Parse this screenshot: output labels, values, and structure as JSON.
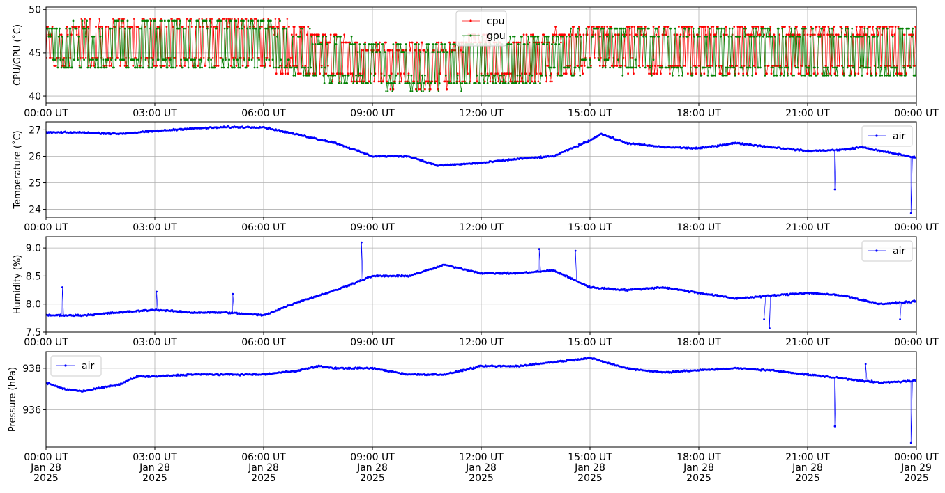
{
  "chart_data": [
    {
      "type": "line",
      "ylabel": "CPU/GPU (˚C)",
      "xlabel": "",
      "x_ticks": [
        "00:00 UT",
        "03:00 UT",
        "06:00 UT",
        "09:00 UT",
        "12:00 UT",
        "15:00 UT",
        "18:00 UT",
        "21:00 UT",
        "00:00 UT"
      ],
      "xlim": [
        "2025-01-28 00:00",
        "2025-01-29 00:00"
      ],
      "ylim": [
        39.2,
        50.3
      ],
      "y_ticks": [
        40,
        45,
        50
      ],
      "grid": true,
      "legend": "top-center",
      "series": [
        {
          "name": "cpu",
          "color": "#ff0000",
          "style": "oscillating",
          "x": [
            0,
            3,
            6,
            7,
            9,
            10.8,
            12,
            13.5,
            15,
            18,
            21,
            24
          ],
          "low": [
            43,
            43,
            43,
            42,
            41,
            40.5,
            41,
            41,
            43,
            42,
            42,
            42
          ],
          "high": [
            48,
            49,
            49,
            48,
            46,
            46,
            47,
            47,
            48,
            48,
            48,
            48
          ]
        },
        {
          "name": "gpu",
          "color": "#008000",
          "style": "oscillating",
          "x": [
            0,
            3,
            6,
            7,
            9,
            10.8,
            12,
            13.5,
            15,
            18,
            21,
            24
          ],
          "low": [
            43,
            43,
            43,
            42,
            41,
            40.5,
            41,
            41,
            43,
            42,
            42,
            42
          ],
          "high": [
            48,
            49,
            49,
            48,
            46,
            46,
            47,
            47,
            48,
            48,
            48,
            48
          ]
        }
      ]
    },
    {
      "type": "line",
      "ylabel": "Temperature (˚C)",
      "xlabel": "",
      "x_ticks": [
        "00:00 UT",
        "03:00 UT",
        "06:00 UT",
        "09:00 UT",
        "12:00 UT",
        "15:00 UT",
        "18:00 UT",
        "21:00 UT",
        "00:00 UT"
      ],
      "ylim": [
        23.7,
        27.3
      ],
      "y_ticks": [
        24,
        25,
        26,
        27
      ],
      "grid": true,
      "legend": "top-right",
      "series": [
        {
          "name": "air",
          "color": "#0000ff",
          "x": [
            0,
            1,
            2,
            3,
            4,
            5,
            6,
            7,
            8,
            9,
            10,
            10.8,
            12,
            13,
            14,
            15,
            15.3,
            16,
            17,
            18,
            19,
            20,
            21,
            22,
            22.5,
            23,
            24
          ],
          "y": [
            26.9,
            26.9,
            26.85,
            26.95,
            27.05,
            27.1,
            27.1,
            26.8,
            26.5,
            26.0,
            26.0,
            25.65,
            25.75,
            25.9,
            26.0,
            26.6,
            26.85,
            26.5,
            26.35,
            26.3,
            26.5,
            26.35,
            26.2,
            26.25,
            26.35,
            26.2,
            25.95
          ],
          "spikes": [
            {
              "x": 21.75,
              "y": 24.75
            },
            {
              "x": 23.85,
              "y": 23.85
            }
          ]
        }
      ]
    },
    {
      "type": "line",
      "ylabel": "Humidity (%)",
      "xlabel": "",
      "x_ticks": [
        "00:00 UT",
        "03:00 UT",
        "06:00 UT",
        "09:00 UT",
        "12:00 UT",
        "15:00 UT",
        "18:00 UT",
        "21:00 UT",
        "00:00 UT"
      ],
      "ylim": [
        7.5,
        9.2
      ],
      "y_ticks": [
        7.5,
        8.0,
        8.5,
        9.0
      ],
      "grid": true,
      "legend": "top-right",
      "series": [
        {
          "name": "air",
          "color": "#0000ff",
          "x": [
            0,
            1,
            2,
            3,
            4,
            5,
            6,
            7,
            8,
            9,
            10,
            11,
            12,
            13,
            14,
            15,
            16,
            17,
            18,
            19,
            20,
            21,
            22,
            23,
            24
          ],
          "y": [
            7.8,
            7.8,
            7.85,
            7.9,
            7.85,
            7.85,
            7.8,
            8.05,
            8.25,
            8.5,
            8.5,
            8.7,
            8.55,
            8.55,
            8.6,
            8.3,
            8.25,
            8.3,
            8.2,
            8.1,
            8.15,
            8.2,
            8.15,
            8.0,
            8.05
          ],
          "spikes": [
            {
              "x": 0.45,
              "y": 8.3
            },
            {
              "x": 3.05,
              "y": 8.22
            },
            {
              "x": 5.15,
              "y": 8.18
            },
            {
              "x": 8.7,
              "y": 9.1
            },
            {
              "x": 13.6,
              "y": 8.98
            },
            {
              "x": 14.6,
              "y": 8.95
            },
            {
              "x": 19.8,
              "y": 7.73
            },
            {
              "x": 19.95,
              "y": 7.57
            },
            {
              "x": 23.55,
              "y": 7.73
            }
          ]
        }
      ]
    },
    {
      "type": "line",
      "ylabel": "Pressure (hPa)",
      "xlabel": "",
      "x_ticks": [
        "00:00 UT\nJan 28\n2025",
        "03:00 UT\nJan 28\n2025",
        "06:00 UT\nJan 28\n2025",
        "09:00 UT\nJan 28\n2025",
        "12:00 UT\nJan 28\n2025",
        "15:00 UT\nJan 28\n2025",
        "18:00 UT\nJan 28\n2025",
        "21:00 UT\nJan 28\n2025",
        "00:00 UT\nJan 29\n2025"
      ],
      "ylim": [
        934.2,
        938.8
      ],
      "y_ticks": [
        936,
        938
      ],
      "grid": true,
      "legend": "top-left",
      "series": [
        {
          "name": "air",
          "color": "#0000ff",
          "x": [
            0,
            0.5,
            1,
            2,
            2.5,
            3,
            4,
            5,
            6,
            7,
            7.5,
            8,
            9,
            10,
            11,
            12,
            13,
            14,
            15,
            16,
            17,
            18,
            19,
            20,
            21,
            22,
            23,
            24
          ],
          "y": [
            937.3,
            937.0,
            936.9,
            937.2,
            937.6,
            937.6,
            937.7,
            937.7,
            937.7,
            937.9,
            938.1,
            938.0,
            938.0,
            937.7,
            937.7,
            938.1,
            938.1,
            938.3,
            938.5,
            938.0,
            937.8,
            937.9,
            938.0,
            937.9,
            937.7,
            937.5,
            937.3,
            937.4
          ],
          "spikes": [
            {
              "x": 21.75,
              "y": 935.2
            },
            {
              "x": 22.6,
              "y": 938.2
            },
            {
              "x": 23.85,
              "y": 934.4
            }
          ]
        }
      ]
    }
  ]
}
